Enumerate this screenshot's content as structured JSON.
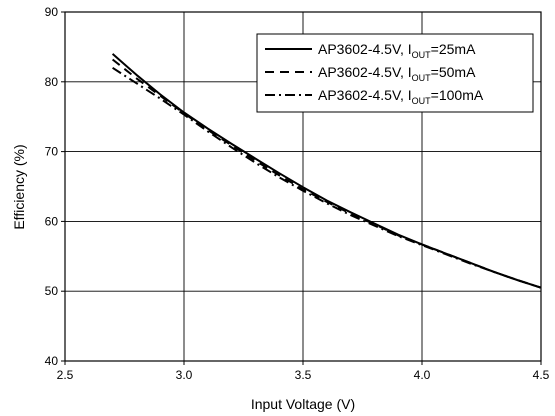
{
  "chart_data": {
    "type": "line",
    "xlabel": "Input Voltage (V)",
    "ylabel": "Efficiency (%)",
    "xlim": [
      2.5,
      4.5
    ],
    "ylim": [
      40,
      90
    ],
    "xticks": [
      "2.5",
      "3.0",
      "3.5",
      "4.0",
      "4.5"
    ],
    "yticks": [
      "40",
      "50",
      "60",
      "70",
      "80",
      "90"
    ],
    "grid": true,
    "legend_position": "top-right",
    "series": [
      {
        "label_main": "AP3602-4.5V, I",
        "label_sub": "OUT",
        "label_tail": "=25mA",
        "style": "solid",
        "x": [
          2.7,
          2.8,
          2.9,
          3.0,
          3.1,
          3.2,
          3.3,
          3.4,
          3.5,
          3.6,
          3.7,
          3.8,
          3.9,
          4.0,
          4.1,
          4.2,
          4.3,
          4.4,
          4.5
        ],
        "y": [
          84.0,
          81.0,
          78.2,
          75.6,
          73.3,
          71.1,
          69.0,
          66.9,
          64.9,
          63.0,
          61.3,
          59.7,
          58.1,
          56.7,
          55.4,
          54.1,
          52.8,
          51.6,
          50.5
        ]
      },
      {
        "label_main": "AP3602-4.5V, I",
        "label_sub": "OUT",
        "label_tail": "=50mA",
        "style": "dashed",
        "x": [
          2.7,
          2.8,
          2.9,
          3.0,
          3.1,
          3.2,
          3.3,
          3.4,
          3.5,
          3.6,
          3.7,
          3.8,
          3.9,
          4.0,
          4.1,
          4.2,
          4.3,
          4.4,
          4.5
        ],
        "y": [
          83.2,
          80.5,
          78.0,
          75.5,
          73.1,
          70.9,
          68.7,
          66.6,
          64.6,
          62.8,
          61.1,
          59.6,
          58.0,
          56.7,
          55.4,
          54.1,
          52.8,
          51.6,
          50.5
        ]
      },
      {
        "label_main": "AP3602-4.5V, I",
        "label_sub": "OUT",
        "label_tail": "=100mA",
        "style": "dashdot",
        "x": [
          2.7,
          2.8,
          2.9,
          3.0,
          3.1,
          3.2,
          3.3,
          3.4,
          3.5,
          3.6,
          3.7,
          3.8,
          3.9,
          4.0,
          4.1,
          4.2,
          4.3,
          4.4,
          4.5
        ],
        "y": [
          82.0,
          79.8,
          77.6,
          75.3,
          72.9,
          70.6,
          68.4,
          66.3,
          64.4,
          62.6,
          60.9,
          59.4,
          57.9,
          56.6,
          55.3,
          54.0,
          52.8,
          51.6,
          50.5
        ]
      }
    ]
  }
}
